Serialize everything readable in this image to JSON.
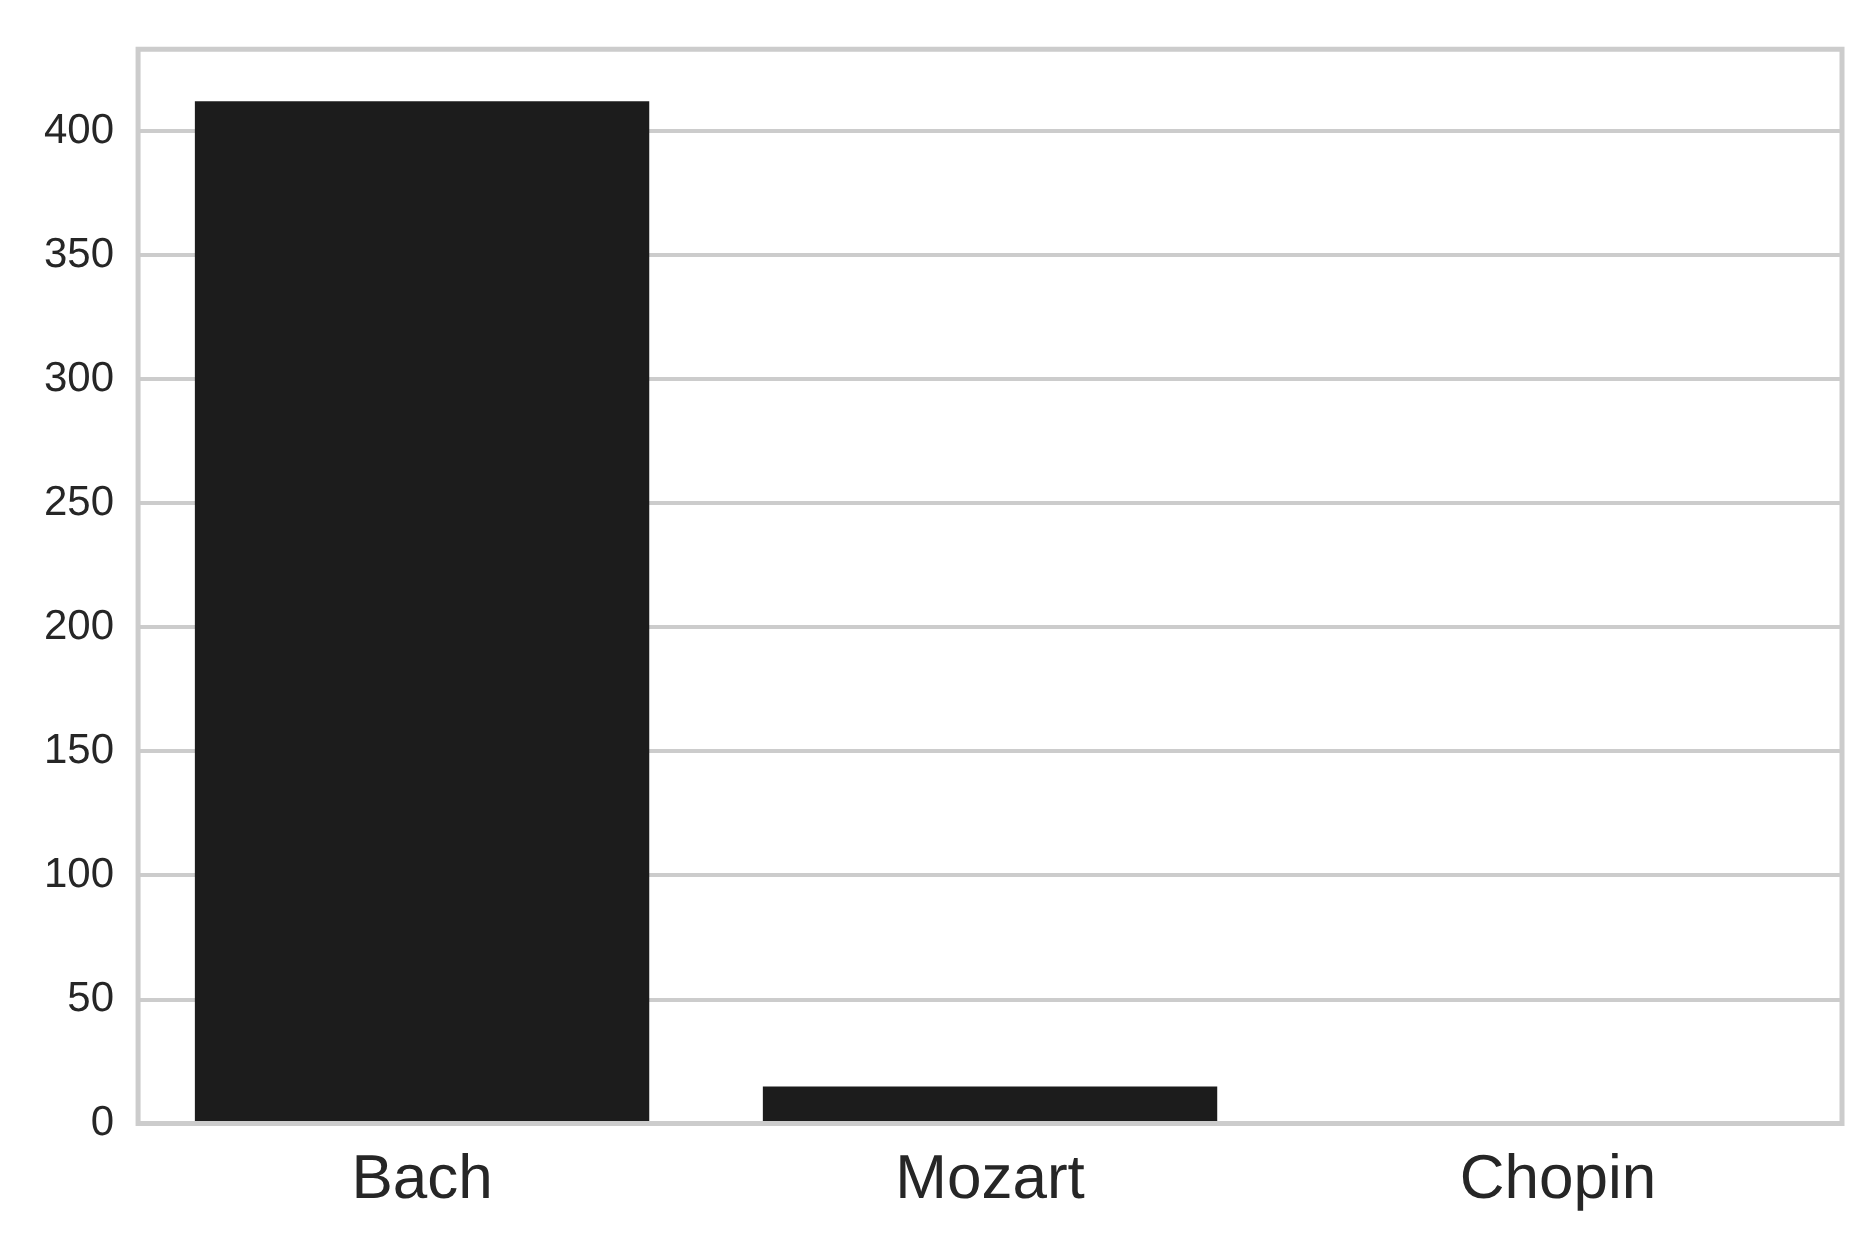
{
  "chart_data": {
    "type": "bar",
    "categories": [
      "Bach",
      "Mozart",
      "Chopin"
    ],
    "values": [
      412,
      15,
      0
    ],
    "color": "#1c1c1c",
    "ylim": [
      0,
      433
    ],
    "yticks": [
      0,
      50,
      100,
      150,
      200,
      250,
      300,
      350,
      400
    ],
    "grid": "y",
    "legend": false
  }
}
